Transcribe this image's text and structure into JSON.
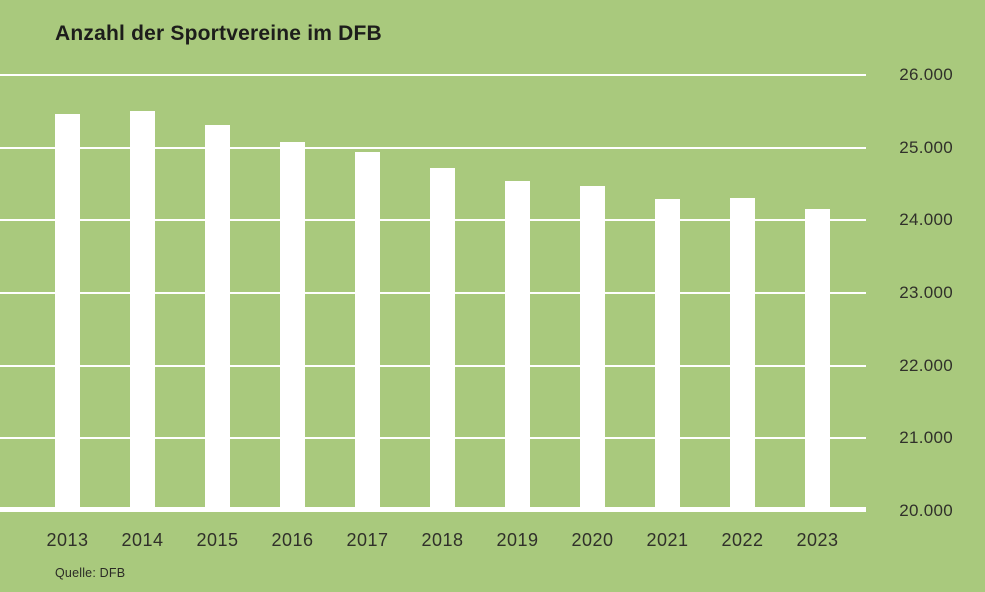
{
  "chart": {
    "title": "Anzahl der Sportvereine im DFB",
    "source": "Quelle: DFB"
  },
  "colors": {
    "background": "#a9c97d",
    "bar": "#ffffff",
    "gridline": "#ffffff",
    "title_text": "#1d1d1b",
    "axis_text": "#30302a"
  },
  "chart_data": {
    "type": "bar",
    "title": "Anzahl der Sportvereine im DFB",
    "source": "Quelle: DFB",
    "categories": [
      "2013",
      "2014",
      "2015",
      "2016",
      "2017",
      "2018",
      "2019",
      "2020",
      "2021",
      "2022",
      "2023"
    ],
    "values": [
      25460,
      25510,
      25310,
      25080,
      24940,
      24720,
      24540,
      24470,
      24290,
      24310,
      24150
    ],
    "xlabel": "",
    "ylabel": "",
    "ylim": [
      20000,
      26000
    ],
    "yticks": [
      {
        "value": 26000,
        "label": "26.000"
      },
      {
        "value": 25000,
        "label": "25.000"
      },
      {
        "value": 24000,
        "label": "24.000"
      },
      {
        "value": 23000,
        "label": "23.000"
      },
      {
        "value": 22000,
        "label": "22.000"
      },
      {
        "value": 21000,
        "label": "21.000"
      },
      {
        "value": 20000,
        "label": "20.000"
      }
    ],
    "grid": true,
    "gridline_color": "#ffffff",
    "bar_color": "#ffffff",
    "background_color": "#a9c97d",
    "legend": false,
    "ytick_position": "right"
  }
}
